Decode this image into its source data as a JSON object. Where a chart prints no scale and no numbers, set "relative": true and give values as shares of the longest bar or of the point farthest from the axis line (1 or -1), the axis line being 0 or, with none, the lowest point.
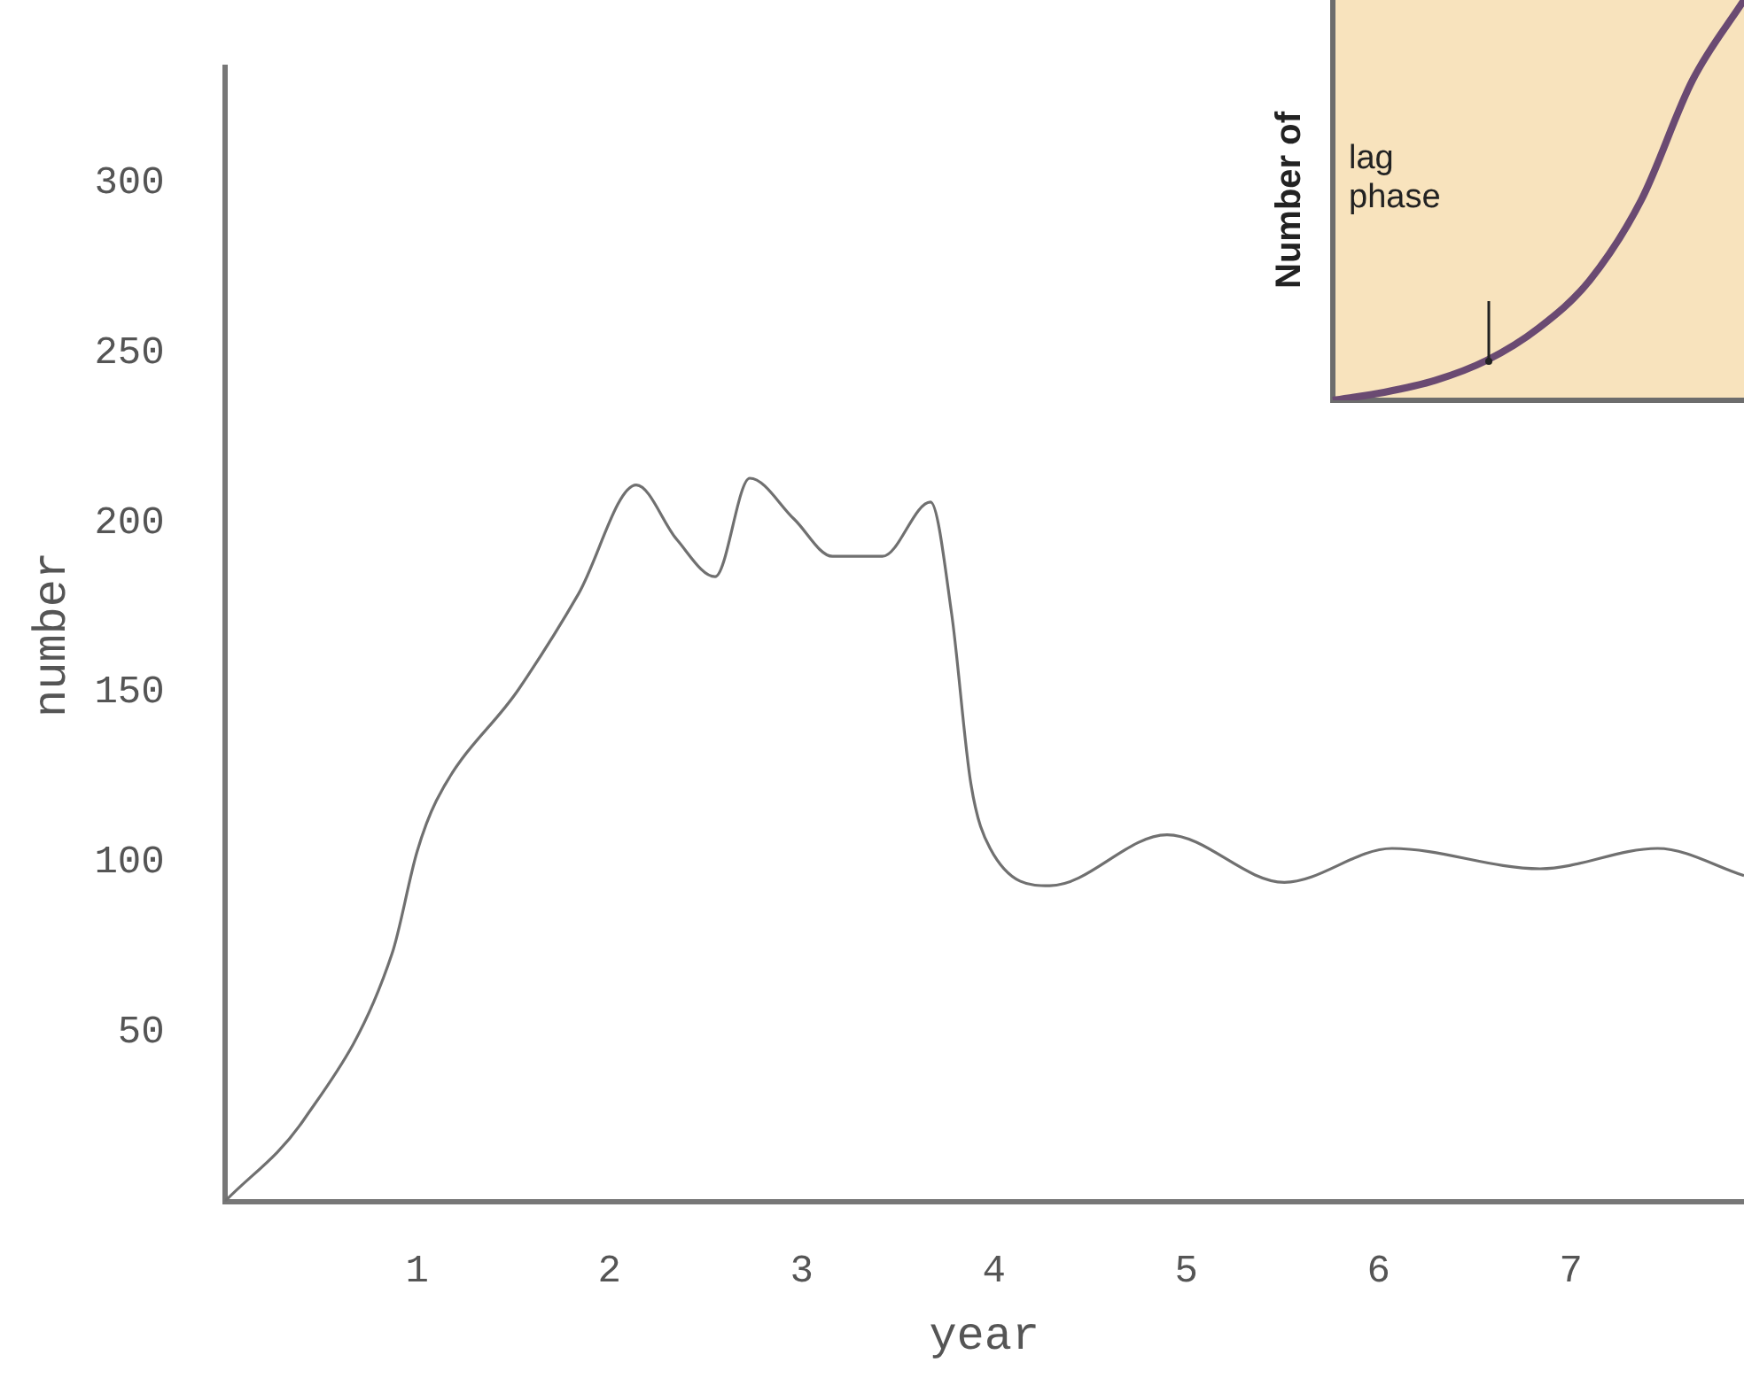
{
  "chart_data": [
    {
      "type": "line",
      "xlabel": "year",
      "ylabel": "number",
      "xlim": [
        0,
        7.9
      ],
      "ylim": [
        0,
        334
      ],
      "xticks": [
        1,
        2,
        3,
        4,
        5,
        6,
        7
      ],
      "yticks": [
        50,
        100,
        150,
        200,
        250,
        300
      ],
      "grid": false,
      "legend": false,
      "marker": "none",
      "line_style": "solid",
      "series": [
        {
          "color": "#707070",
          "x": [
            0,
            0.41,
            0.87,
            1.0,
            1.1,
            1.53,
            1.84,
            2.14,
            2.35,
            2.55,
            2.73,
            2.96,
            3.16,
            3.42,
            3.67,
            3.78,
            3.88,
            3.98,
            4.29,
            4.9,
            5.51,
            6.07,
            6.84,
            7.45,
            7.9
          ],
          "values": [
            0,
            24,
            73,
            103,
            118,
            151,
            179,
            211,
            195,
            184,
            213,
            201,
            190,
            190,
            206,
            173,
            123,
            104,
            93,
            108,
            94,
            104,
            98,
            104,
            96
          ]
        }
      ]
    },
    {
      "type": "line",
      "relative": true,
      "ylabel": "Number of",
      "annotations": [
        "lag phase"
      ],
      "categories": [
        null,
        null,
        null,
        null,
        null,
        null,
        null,
        null,
        null
      ],
      "legend": false,
      "marker": "none",
      "series": [
        {
          "color": "#6a4a72",
          "values": [
            0,
            0.02,
            0.05,
            0.1,
            0.18,
            0.3,
            0.5,
            0.8,
            1
          ]
        }
      ]
    }
  ]
}
